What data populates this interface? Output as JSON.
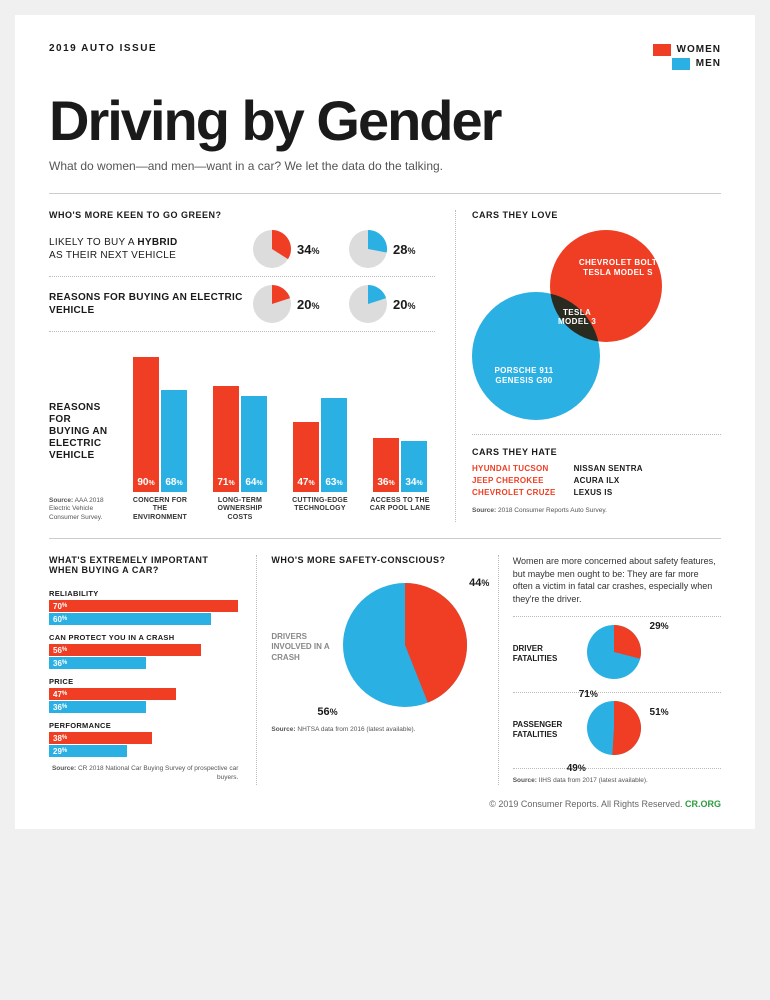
{
  "colors": {
    "women": "#ef3e23",
    "men": "#2bb0e4",
    "grey": "#dcdcdc",
    "dark": "#18272d"
  },
  "header": {
    "issue": "2019 AUTO ISSUE",
    "legend_women": "WOMEN",
    "legend_men": "MEN",
    "title": "Driving by Gender",
    "subtitle": "What do women—and men—want in a car? We let the data do the talking."
  },
  "green": {
    "heading": "WHO'S MORE KEEN TO GO GREEN?",
    "row1_label_a": "LIKELY TO BUY A ",
    "row1_label_b": "HYBRID",
    "row1_label_c": "AS THEIR NEXT VEHICLE",
    "row1_women": 34,
    "row1_men": 28,
    "row2_label": "REASONS FOR BUYING AN ELECTRIC VEHICLE",
    "row2_women": 20,
    "row2_men": 20,
    "bars_label": "REASONS FOR BUYING AN ELECTRIC VEHICLE",
    "bars": [
      {
        "cat": "CONCERN FOR THE ENVIRONMENT",
        "women": 90,
        "men": 68
      },
      {
        "cat": "LONG-TERM OWNERSHIP COSTS",
        "women": 71,
        "men": 64
      },
      {
        "cat": "CUTTING-EDGE TECHNOLOGY",
        "women": 47,
        "men": 63
      },
      {
        "cat": "ACCESS TO THE CAR POOL LANE",
        "women": 36,
        "men": 34
      }
    ],
    "source_b": "Source:",
    "source": " AAA 2018 Electric Vehicle Consumer Survey."
  },
  "love": {
    "heading": "CARS THEY LOVE",
    "women_cars": "CHEVROLET BOLT\nTESLA MODEL S",
    "overlap": "TESLA MODEL 3",
    "men_cars": "PORSCHE 911\nGENESIS G90",
    "hate_heading": "CARS THEY HATE",
    "hate_women": [
      "HYUNDAI TUCSON",
      "JEEP CHEROKEE",
      "CHEVROLET CRUZE"
    ],
    "hate_men": [
      "NISSAN SENTRA",
      "ACURA ILX",
      "LEXUS IS"
    ],
    "source_b": "Source:",
    "source": " 2018 Consumer Reports Auto Survey."
  },
  "important": {
    "heading": "WHAT'S EXTREMELY IMPORTANT WHEN BUYING A CAR?",
    "items": [
      {
        "label": "RELIABILITY",
        "women": 70,
        "men": 60
      },
      {
        "label": "CAN PROTECT YOU IN A CRASH",
        "women": 56,
        "men": 36
      },
      {
        "label": "PRICE",
        "women": 47,
        "men": 36
      },
      {
        "label": "PERFORMANCE",
        "women": 38,
        "men": 29
      }
    ],
    "source_b": "Source:",
    "source": " CR 2018 National Car Buying Survey of prospective car buyers."
  },
  "safety": {
    "heading": "WHO'S MORE SAFETY-CONSCIOUS?",
    "body": "Women are more concerned about safety features, but maybe men ought to be: They are far more often a victim in fatal car crashes, especially when they're the driver.",
    "crash_label": "DRIVERS INVOLVED IN A CRASH",
    "crash_women": 44,
    "crash_men": 56,
    "crash_source_b": "Source:",
    "crash_source": " NHTSA data from 2016 (latest available).",
    "driver_label": "DRIVER FATALITIES",
    "driver_women": 29,
    "driver_men": 71,
    "passenger_label": "PASSENGER FATALITIES",
    "passenger_women": 51,
    "passenger_men": 49,
    "fat_source_b": "Source:",
    "fat_source": " IIHS data from 2017 (latest available)."
  },
  "footer": {
    "copyright": "© 2019 Consumer Reports. All Rights Reserved. ",
    "org": "CR.ORG"
  }
}
